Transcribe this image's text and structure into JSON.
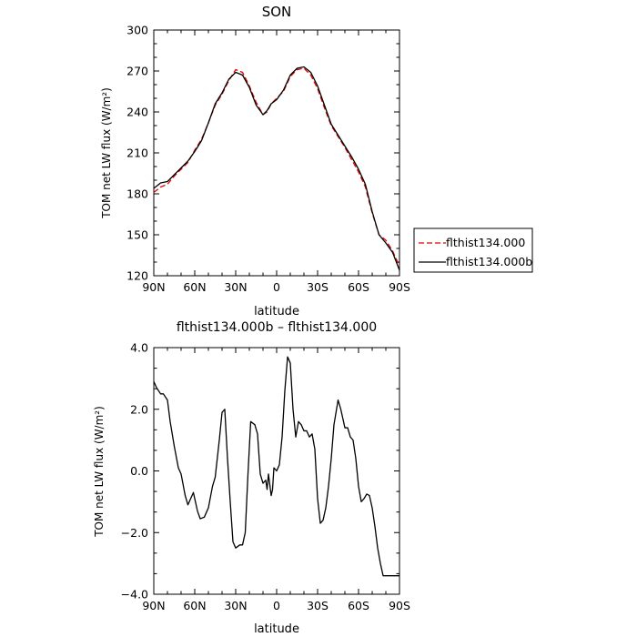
{
  "chart_data": [
    {
      "type": "line",
      "title": "SON",
      "xlabel": "latitude",
      "ylabel": "TOM net LW flux (W/m²)",
      "xlim": [
        90,
        -90
      ],
      "ylim": [
        120,
        300
      ],
      "x_tick_values": [
        90,
        60,
        30,
        0,
        -30,
        -60,
        -90
      ],
      "x_tick_labels": [
        "90N",
        "60N",
        "30N",
        "0",
        "30S",
        "60S",
        "90S"
      ],
      "y_tick_values": [
        120,
        150,
        180,
        210,
        240,
        270,
        300
      ],
      "y_tick_labels": [
        "120",
        "150",
        "180",
        "210",
        "240",
        "270",
        "300"
      ],
      "legend_position": "right",
      "series": [
        {
          "name": "flthist134.000",
          "color": "#e00000",
          "dash": "dashed",
          "x": [
            90,
            85,
            80,
            75,
            70,
            65,
            60,
            55,
            50,
            45,
            40,
            35,
            30,
            25,
            20,
            15,
            10,
            7,
            4,
            0,
            -5,
            -10,
            -15,
            -20,
            -25,
            -30,
            -35,
            -40,
            -45,
            -50,
            -55,
            -60,
            -65,
            -70,
            -75,
            -80,
            -85,
            -90
          ],
          "values": [
            181,
            185,
            187,
            193,
            198,
            203,
            212,
            220,
            232,
            245,
            253,
            263,
            271,
            269,
            259,
            247,
            238,
            240,
            246,
            250,
            255,
            266,
            271,
            272,
            267,
            257,
            243,
            230,
            222,
            214,
            205,
            196,
            185,
            166,
            150,
            146,
            138,
            127
          ]
        },
        {
          "name": "flthist134.000b",
          "color": "#000000",
          "dash": "solid",
          "x": [
            90,
            85,
            80,
            75,
            70,
            65,
            60,
            55,
            50,
            45,
            40,
            35,
            30,
            25,
            20,
            15,
            10,
            7,
            4,
            0,
            -5,
            -10,
            -15,
            -20,
            -25,
            -30,
            -35,
            -40,
            -45,
            -50,
            -55,
            -60,
            -65,
            -70,
            -75,
            -80,
            -85,
            -90
          ],
          "values": [
            184,
            188,
            189,
            194,
            199,
            204,
            211,
            219,
            232,
            246,
            254,
            264,
            269,
            267,
            258,
            245,
            238,
            241,
            246,
            249,
            256,
            267,
            272,
            273,
            269,
            259,
            245,
            231,
            223,
            215,
            207,
            198,
            187,
            167,
            150,
            144,
            137,
            124
          ]
        }
      ]
    },
    {
      "type": "line",
      "title": "flthist134.000b – flthist134.000",
      "xlabel": "latitude",
      "ylabel": "TOM net LW flux (W/m²)",
      "xlim": [
        90,
        -90
      ],
      "ylim": [
        -4,
        4
      ],
      "x_tick_values": [
        90,
        60,
        30,
        0,
        -30,
        -60,
        -90
      ],
      "x_tick_labels": [
        "90N",
        "60N",
        "30N",
        "0",
        "30S",
        "60S",
        "90S"
      ],
      "y_tick_values": [
        -4,
        -2,
        0,
        2,
        4
      ],
      "y_tick_labels": [
        "−4.0",
        "−2.0",
        "0.0",
        "2.0",
        "4.0"
      ],
      "series": [
        {
          "color": "#000000",
          "dash": "solid",
          "x": [
            90,
            88,
            85,
            83,
            80,
            78,
            75,
            72,
            70,
            67,
            65,
            63,
            61,
            58,
            56,
            53,
            50,
            47,
            45,
            42,
            40,
            38,
            36,
            34,
            32,
            30,
            27,
            25,
            23,
            21,
            19,
            16,
            14,
            12,
            10,
            8,
            7,
            6,
            4,
            3,
            2,
            0,
            -2,
            -4,
            -6,
            -8,
            -10,
            -12,
            -14,
            -16,
            -18,
            -20,
            -22,
            -24,
            -26,
            -28,
            -30,
            -32,
            -34,
            -36,
            -38,
            -40,
            -42,
            -45,
            -47,
            -50,
            -52,
            -54,
            -56,
            -58,
            -60,
            -62,
            -64,
            -66,
            -68,
            -70,
            -72,
            -74,
            -76,
            -78,
            -80,
            -82,
            -84,
            -86,
            -88,
            -90
          ],
          "values": [
            2.9,
            2.7,
            2.5,
            2.5,
            2.3,
            1.6,
            0.8,
            0.1,
            -0.1,
            -0.8,
            -1.1,
            -0.9,
            -0.7,
            -1.3,
            -1.55,
            -1.5,
            -1.2,
            -0.5,
            -0.2,
            1.0,
            1.9,
            2.0,
            0.4,
            -1.0,
            -2.3,
            -2.5,
            -2.4,
            -2.4,
            -2.0,
            -0.1,
            1.6,
            1.5,
            1.2,
            -0.1,
            -0.4,
            -0.3,
            -0.6,
            -0.1,
            -0.8,
            -0.6,
            0.1,
            0.0,
            0.2,
            1.1,
            2.6,
            3.7,
            3.5,
            2.0,
            1.1,
            1.6,
            1.5,
            1.3,
            1.3,
            1.1,
            1.2,
            0.7,
            -0.9,
            -1.7,
            -1.6,
            -1.2,
            -0.5,
            0.4,
            1.5,
            2.3,
            2.0,
            1.4,
            1.4,
            1.1,
            1.0,
            0.4,
            -0.5,
            -1.0,
            -0.9,
            -0.75,
            -0.8,
            -1.2,
            -1.8,
            -2.5,
            -3.0,
            -3.4,
            -3.4,
            -3.4,
            -3.4,
            -3.4,
            -3.4,
            -3.4
          ]
        }
      ]
    }
  ]
}
